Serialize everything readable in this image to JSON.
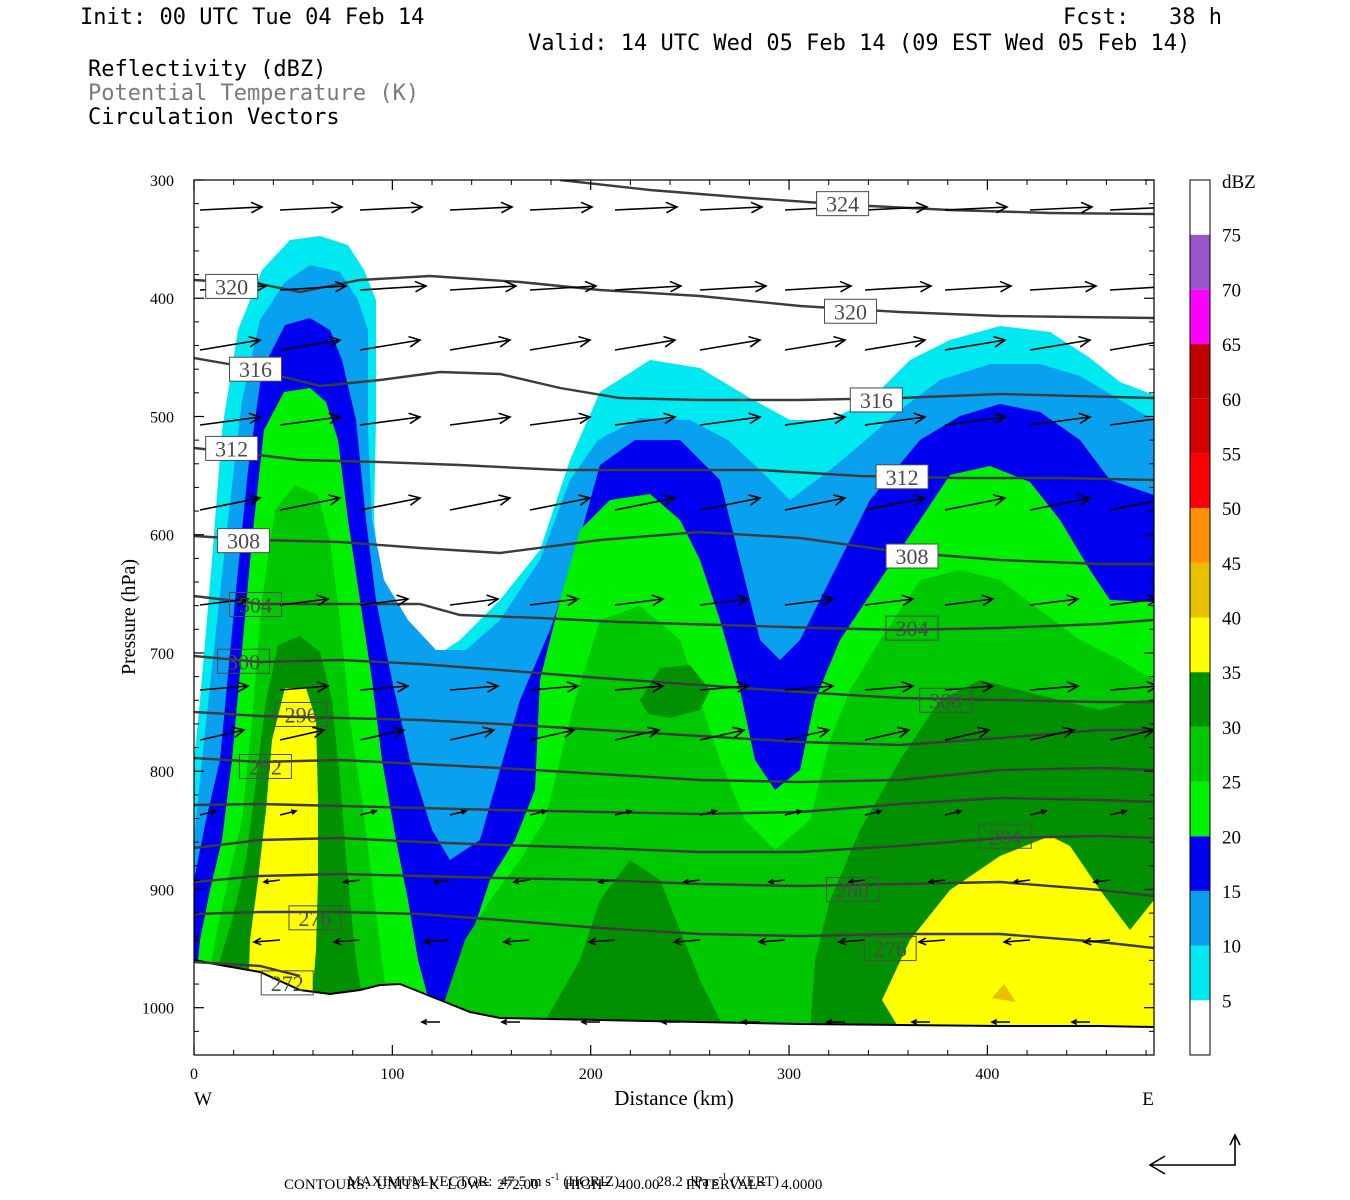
{
  "header": {
    "init": "Init: 00 UTC Tue 04 Feb 14",
    "fcst": "Fcst:   38 h",
    "valid": "Valid: 14 UTC Wed 05 Feb 14 (09 EST Wed 05 Feb 14)",
    "field1": "Reflectivity (dBZ)",
    "field2": "Potential Temperature (K)",
    "field3": "Circulation Vectors"
  },
  "footer": {
    "max_vector_label": "MAXIMUM VECTOR:",
    "max_vector_horiz": "47.5 m s",
    "horiz_sup": "-1",
    "horiz_tag": "(HORIZ)",
    "max_vector_vert": "28.2 dPa s",
    "vert_sup": "-1",
    "vert_tag": "(VERT)",
    "contours_line": "CONTOURS:  UNITS=K  LOW=  272.00       HIGH=  400.00       INTERVAL=    4.0000"
  },
  "colors": {
    "ref_5": "#00e8f0",
    "ref_10": "#0aa0f0",
    "ref_15": "#0000f0",
    "ref_20": "#00f000",
    "ref_25": "#00c800",
    "ref_30": "#009000",
    "ref_35": "#ffff00",
    "ref_40": "#e8c000",
    "ref_45": "#ff9000",
    "ref_50": "#ff0000",
    "ref_55": "#d60000",
    "ref_60": "#c00000",
    "ref_65": "#ff00ff",
    "ref_70": "#9955c9",
    "contour": "#3c3c3c"
  },
  "chart_data": {
    "type": "cross-section contour",
    "xlabel": "Distance (km)",
    "ylabel": "Pressure (hPa)",
    "x_ticks": [
      0,
      100,
      200,
      300,
      400
    ],
    "y_ticks": [
      300,
      400,
      500,
      600,
      700,
      800,
      900,
      1000
    ],
    "xlim": [
      0,
      484
    ],
    "ylim": [
      1040,
      300
    ],
    "left_end_label": "W",
    "right_end_label": "E",
    "colorbar": {
      "title": "dBZ",
      "levels": [
        5,
        10,
        15,
        20,
        25,
        30,
        35,
        40,
        45,
        50,
        55,
        60,
        65,
        70,
        75
      ]
    },
    "theta_labels": [
      {
        "value": "324",
        "x": 327,
        "p": 320
      },
      {
        "value": "320",
        "x": 19,
        "p": 390
      },
      {
        "value": "320",
        "x": 331,
        "p": 411
      },
      {
        "value": "316",
        "x": 31,
        "p": 460
      },
      {
        "value": "316",
        "x": 344,
        "p": 486
      },
      {
        "value": "312",
        "x": 19,
        "p": 527
      },
      {
        "value": "312",
        "x": 357,
        "p": 551
      },
      {
        "value": "308",
        "x": 25,
        "p": 605
      },
      {
        "value": "308",
        "x": 362,
        "p": 618
      },
      {
        "value": "304",
        "x": 31,
        "p": 659
      },
      {
        "value": "304",
        "x": 362,
        "p": 679
      },
      {
        "value": "300",
        "x": 25,
        "p": 707
      },
      {
        "value": "300",
        "x": 379,
        "p": 740
      },
      {
        "value": "296",
        "x": 54,
        "p": 752
      },
      {
        "value": "292",
        "x": 36,
        "p": 796
      },
      {
        "value": "284",
        "x": 409,
        "p": 855
      },
      {
        "value": "280",
        "x": 332,
        "p": 900
      },
      {
        "value": "276",
        "x": 61,
        "p": 924
      },
      {
        "value": "276",
        "x": 351,
        "p": 950
      },
      {
        "value": "272",
        "x": 47,
        "p": 979
      }
    ]
  }
}
